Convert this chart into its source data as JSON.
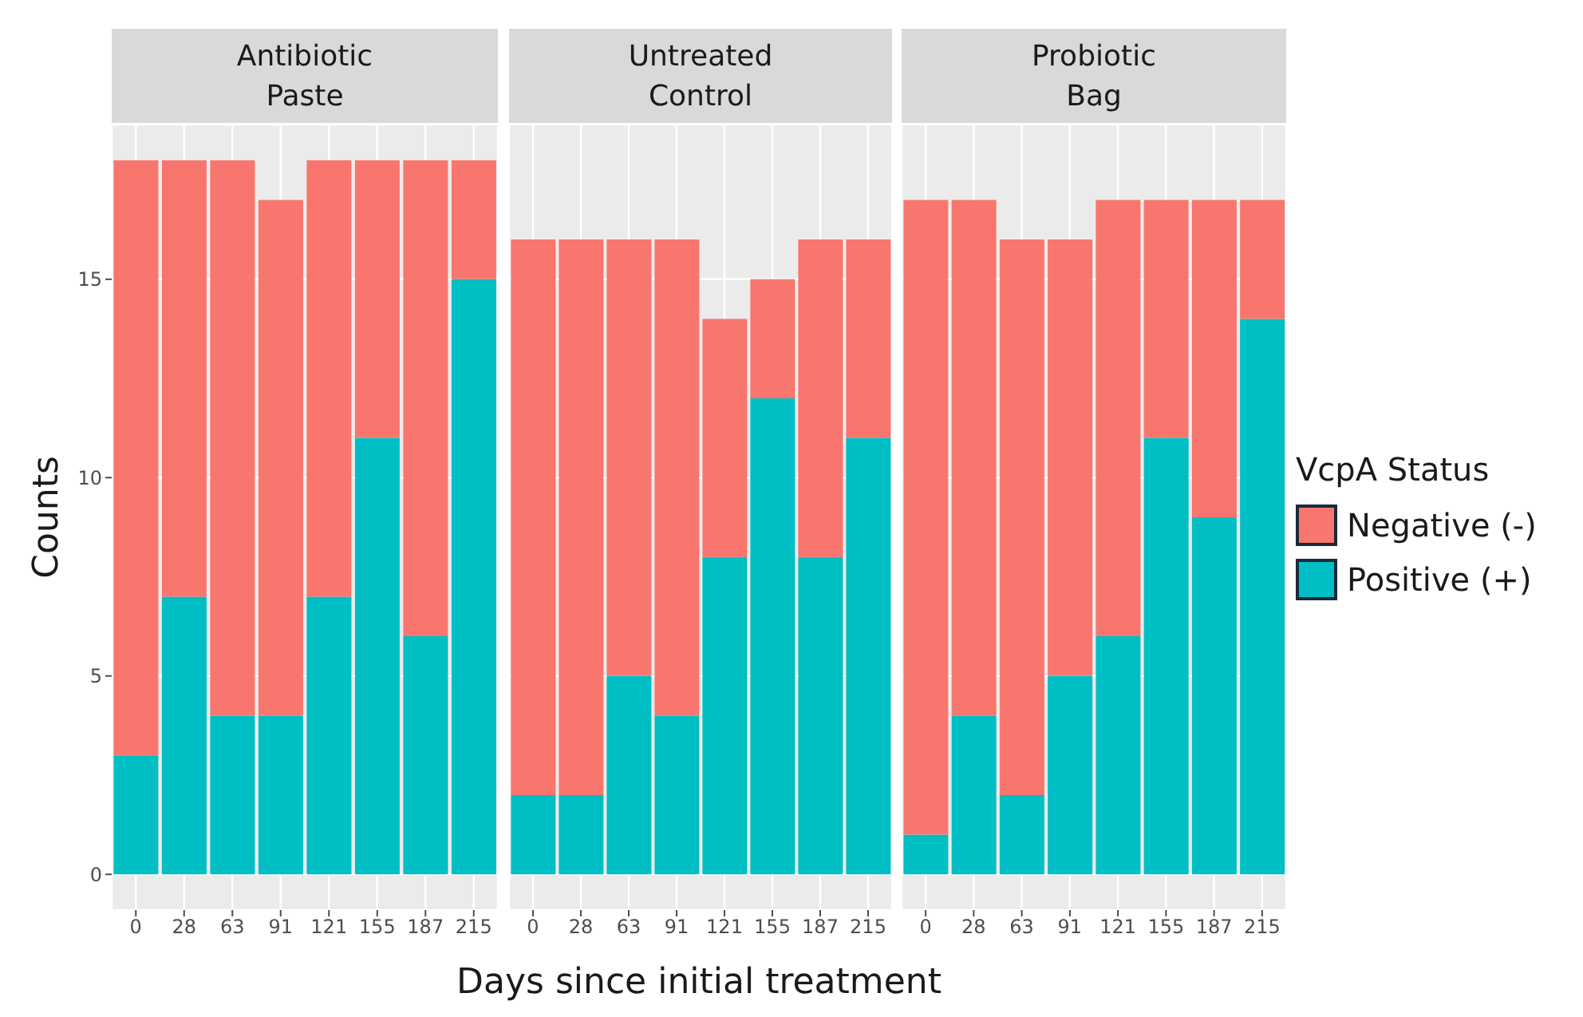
{
  "chart_data": [
    {
      "type": "bar",
      "title": "Antibiotic\nPaste",
      "ylabel": "Counts",
      "categories": [
        "0",
        "28",
        "63",
        "91",
        "121",
        "155",
        "187",
        "215"
      ],
      "stacked": true,
      "ylim": [
        -0.9,
        18.9
      ],
      "yticks": [
        0,
        5,
        10,
        15
      ],
      "grid": true,
      "legend": false,
      "series": [
        {
          "color": "#00bfc4",
          "values": [
            3,
            7,
            4,
            4,
            7,
            11,
            6,
            15
          ]
        },
        {
          "color": "#f8766d",
          "values": [
            15,
            11,
            14,
            13,
            11,
            7,
            12,
            3
          ]
        }
      ]
    },
    {
      "type": "bar",
      "title": "Untreated\nControl",
      "xlabel": "Days since initial treatment",
      "categories": [
        "0",
        "28",
        "63",
        "91",
        "121",
        "155",
        "187",
        "215"
      ],
      "stacked": true,
      "ylim": [
        -0.9,
        18.9
      ],
      "yticks": [
        0,
        5,
        10,
        15
      ],
      "grid": true,
      "legend": false,
      "tick_labels": "x",
      "series": [
        {
          "color": "#00bfc4",
          "values": [
            2,
            2,
            5,
            4,
            8,
            12,
            8,
            11
          ]
        },
        {
          "color": "#f8766d",
          "values": [
            14,
            14,
            11,
            12,
            6,
            3,
            8,
            5
          ]
        }
      ]
    },
    {
      "type": "bar",
      "title": "Probiotic\nBag",
      "legend_title": "VcpA Status",
      "categories": [
        "0",
        "28",
        "63",
        "91",
        "121",
        "155",
        "187",
        "215"
      ],
      "stacked": true,
      "ylim": [
        -0.9,
        18.9
      ],
      "yticks": [
        0,
        5,
        10,
        15
      ],
      "grid": true,
      "legend": "right",
      "tick_labels": "x",
      "series": [
        {
          "name": "Positive (+)",
          "color": "#00bfc4",
          "values": [
            1,
            4,
            2,
            5,
            6,
            11,
            9,
            14
          ]
        },
        {
          "name": "Negative (-)",
          "color": "#f8766d",
          "values": [
            16,
            13,
            14,
            11,
            11,
            6,
            8,
            3
          ]
        }
      ]
    }
  ]
}
